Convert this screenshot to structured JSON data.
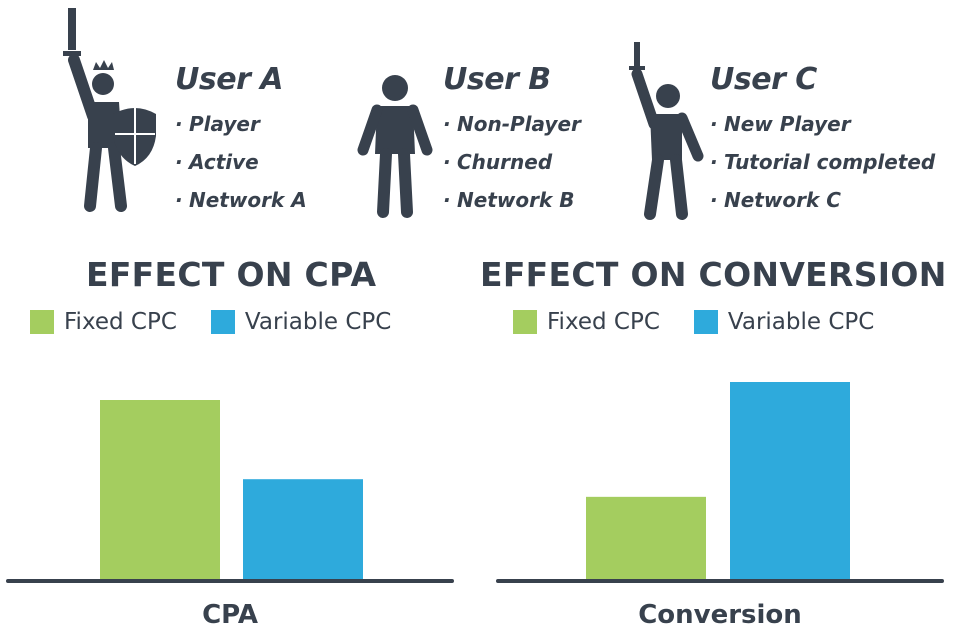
{
  "users": [
    {
      "name": "User A",
      "traits": [
        "Player",
        "Active",
        "Network A"
      ],
      "icon": "warrior-with-sword-and-shield-icon"
    },
    {
      "name": "User B",
      "traits": [
        "Non-Player",
        "Churned",
        "Network B"
      ],
      "icon": "standing-person-icon"
    },
    {
      "name": "User C",
      "traits": [
        "New Player",
        "Tutorial completed",
        "Network C"
      ],
      "icon": "person-raising-sword-icon"
    }
  ],
  "trait_bullet": "·",
  "colors": {
    "ink": "#38414d",
    "fixed": "#a4cd5f",
    "variable": "#2eaadc"
  },
  "chart_data": [
    {
      "type": "bar",
      "title": "EFFECT ON CPA",
      "xlabel": "CPA",
      "ylabel": "",
      "categories": [
        "CPA"
      ],
      "series": [
        {
          "name": "Fixed CPC",
          "values": [
            100
          ]
        },
        {
          "name": "Variable CPC",
          "values": [
            56
          ]
        }
      ],
      "ylim": [
        0,
        110
      ],
      "grid": false,
      "legend": "top"
    },
    {
      "type": "bar",
      "title": "EFFECT ON CONVERSION",
      "xlabel": "Conversion",
      "ylabel": "",
      "categories": [
        "Conversion"
      ],
      "series": [
        {
          "name": "Fixed CPC",
          "values": [
            42
          ]
        },
        {
          "name": "Variable CPC",
          "values": [
            100
          ]
        }
      ],
      "ylim": [
        0,
        100
      ],
      "grid": false,
      "legend": "top"
    }
  ]
}
